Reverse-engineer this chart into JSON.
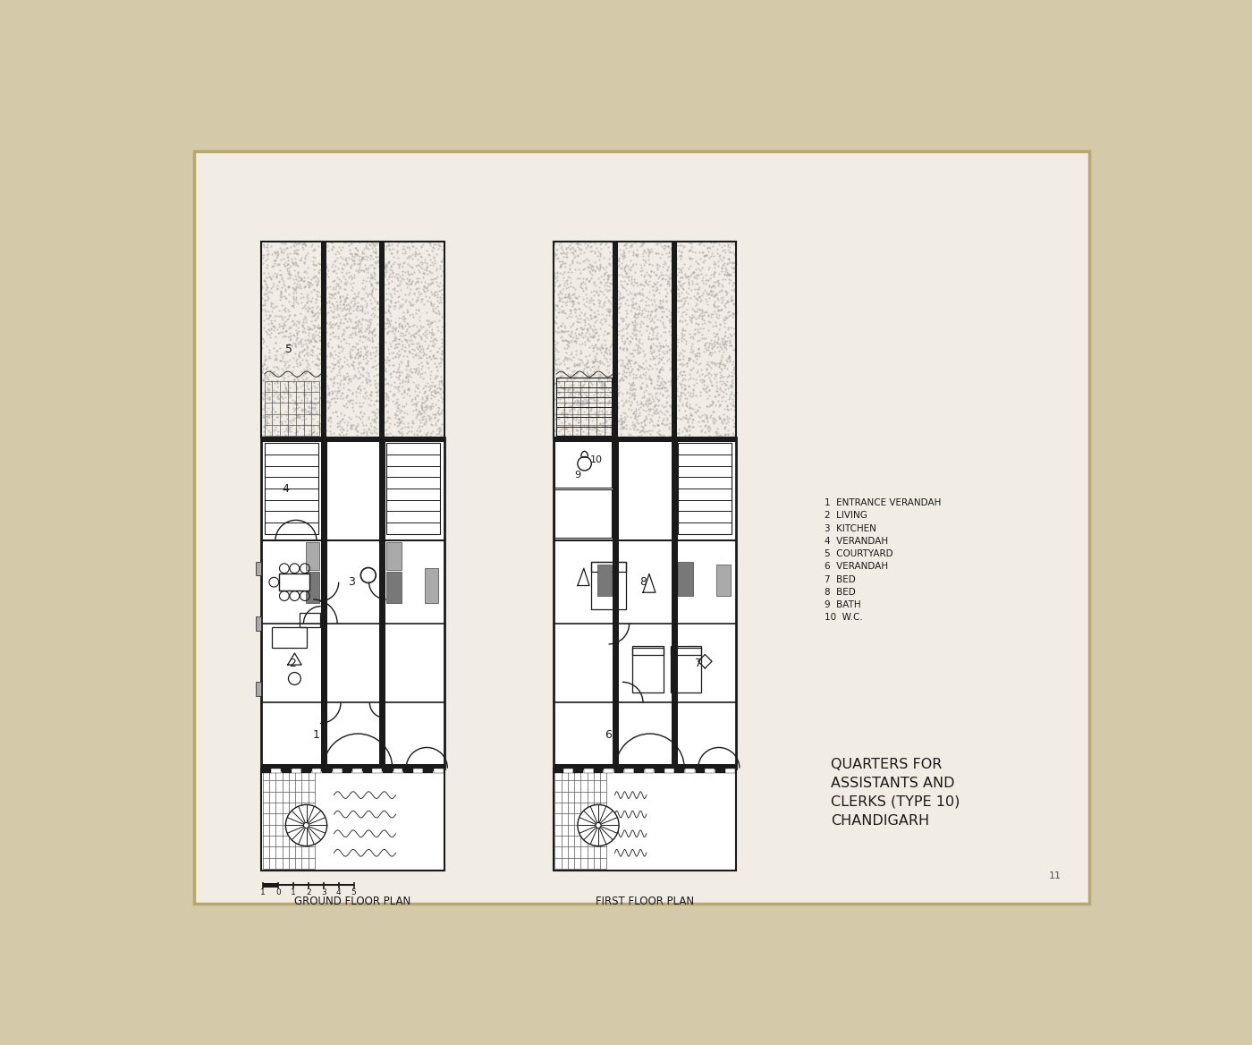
{
  "bg_color": "#d4c9a8",
  "paper_color": "#f2ede4",
  "wall_color": "#1a1a1a",
  "gray_color": "#888888",
  "light_gray": "#cccccc",
  "stipple_color": "#aaaaaa",
  "ground_floor_label": "GROUND FLOOR PLAN",
  "first_floor_label": "FIRST FLOOR PLAN",
  "legend_lines": [
    "1  ENTRANCE VERANDAH",
    "2  LIVING",
    "3  KITCHEN",
    "4  VERANDAH",
    "5  COURTYARD",
    "6  VERANDAH",
    "7  BED",
    "8  BED",
    "9  BATH",
    "10  W.C."
  ],
  "title_lines": [
    "QUARTERS FOR",
    "ASSISTANTS AND",
    "CLERKS (TYPE 10)",
    "CHANDIGARH"
  ],
  "page_num": "11"
}
